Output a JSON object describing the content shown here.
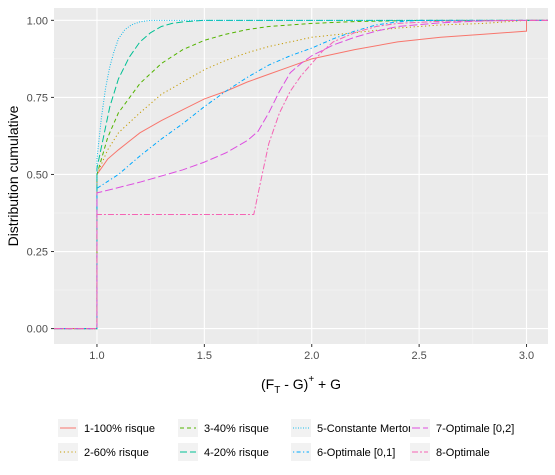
{
  "chart_data": {
    "type": "line",
    "xlabel": "(F_T - G)^+ + G",
    "xlabel_parts": {
      "open": "(F",
      "sub": "T",
      "mid": " - G)",
      "sup": "+",
      "tail": " + G"
    },
    "ylabel": "Distribution cumulative",
    "xlim": [
      0.8,
      3.1
    ],
    "ylim": [
      -0.05,
      1.04
    ],
    "x_ticks": [
      "1.0",
      "1.5",
      "2.0",
      "2.5",
      "3.0"
    ],
    "x_tick_values": [
      1.0,
      1.5,
      2.0,
      2.5,
      3.0
    ],
    "y_ticks": [
      "0.00",
      "0.25",
      "0.50",
      "0.75",
      "1.00"
    ],
    "y_tick_values": [
      0.0,
      0.25,
      0.5,
      0.75,
      1.0
    ],
    "grid": true,
    "legend_position": "bottom",
    "series": [
      {
        "name": "1-100% risque",
        "color": "#F8766D",
        "dash": "solid",
        "points": [
          [
            0.8,
            0
          ],
          [
            1.0,
            0
          ],
          [
            1.0,
            0.5
          ],
          [
            1.05,
            0.55
          ],
          [
            1.1,
            0.58
          ],
          [
            1.2,
            0.635
          ],
          [
            1.3,
            0.675
          ],
          [
            1.4,
            0.71
          ],
          [
            1.5,
            0.745
          ],
          [
            1.6,
            0.77
          ],
          [
            1.7,
            0.8
          ],
          [
            1.8,
            0.825
          ],
          [
            1.9,
            0.85
          ],
          [
            2.0,
            0.875
          ],
          [
            2.2,
            0.905
          ],
          [
            2.4,
            0.93
          ],
          [
            2.6,
            0.945
          ],
          [
            2.8,
            0.955
          ],
          [
            3.0,
            0.965
          ],
          [
            3.0,
            1.0
          ],
          [
            3.1,
            1.0
          ]
        ]
      },
      {
        "name": "2-60% risque",
        "color": "#C49A00",
        "dash": "dotted",
        "points": [
          [
            0.8,
            0
          ],
          [
            1.0,
            0
          ],
          [
            1.0,
            0.5
          ],
          [
            1.05,
            0.58
          ],
          [
            1.1,
            0.635
          ],
          [
            1.2,
            0.7
          ],
          [
            1.3,
            0.76
          ],
          [
            1.4,
            0.8
          ],
          [
            1.5,
            0.84
          ],
          [
            1.6,
            0.87
          ],
          [
            1.7,
            0.895
          ],
          [
            1.8,
            0.915
          ],
          [
            1.9,
            0.93
          ],
          [
            2.0,
            0.945
          ],
          [
            2.2,
            0.96
          ],
          [
            2.4,
            0.975
          ],
          [
            2.6,
            0.985
          ],
          [
            2.8,
            0.99
          ],
          [
            3.0,
            1.0
          ],
          [
            3.1,
            1.0
          ]
        ]
      },
      {
        "name": "3-40% risque",
        "color": "#53B400",
        "dash": "dashed",
        "points": [
          [
            0.8,
            0
          ],
          [
            1.0,
            0
          ],
          [
            1.0,
            0.5
          ],
          [
            1.05,
            0.62
          ],
          [
            1.1,
            0.7
          ],
          [
            1.2,
            0.795
          ],
          [
            1.3,
            0.86
          ],
          [
            1.4,
            0.905
          ],
          [
            1.5,
            0.935
          ],
          [
            1.6,
            0.955
          ],
          [
            1.7,
            0.97
          ],
          [
            1.8,
            0.98
          ],
          [
            2.0,
            0.99
          ],
          [
            2.2,
            0.996
          ],
          [
            2.5,
            1.0
          ],
          [
            3.1,
            1.0
          ]
        ]
      },
      {
        "name": "4-20% risque",
        "color": "#00C094",
        "dash": "longdash",
        "points": [
          [
            0.8,
            0
          ],
          [
            1.0,
            0
          ],
          [
            1.0,
            0.52
          ],
          [
            1.03,
            0.62
          ],
          [
            1.06,
            0.72
          ],
          [
            1.1,
            0.81
          ],
          [
            1.15,
            0.88
          ],
          [
            1.2,
            0.93
          ],
          [
            1.25,
            0.96
          ],
          [
            1.3,
            0.98
          ],
          [
            1.35,
            0.99
          ],
          [
            1.4,
            0.995
          ],
          [
            1.5,
            1.0
          ],
          [
            3.1,
            1.0
          ]
        ]
      },
      {
        "name": "5-Constante Merton",
        "color": "#00B6EB",
        "dash": "fine-dotted",
        "points": [
          [
            0.8,
            0
          ],
          [
            1.0,
            0
          ],
          [
            1.0,
            0.55
          ],
          [
            1.02,
            0.68
          ],
          [
            1.04,
            0.78
          ],
          [
            1.06,
            0.85
          ],
          [
            1.08,
            0.9
          ],
          [
            1.1,
            0.94
          ],
          [
            1.13,
            0.97
          ],
          [
            1.16,
            0.985
          ],
          [
            1.2,
            0.995
          ],
          [
            1.25,
            1.0
          ],
          [
            3.1,
            1.0
          ]
        ]
      },
      {
        "name": "6-Optimale [0,1]",
        "color": "#A58AFF",
        "dash": "dotdash",
        "stroke": "#00A9FF",
        "points": [
          [
            0.8,
            0
          ],
          [
            1.0,
            0
          ],
          [
            1.0,
            0.455
          ],
          [
            1.1,
            0.5
          ],
          [
            1.2,
            0.56
          ],
          [
            1.3,
            0.615
          ],
          [
            1.4,
            0.665
          ],
          [
            1.5,
            0.72
          ],
          [
            1.6,
            0.77
          ],
          [
            1.7,
            0.815
          ],
          [
            1.8,
            0.855
          ],
          [
            1.9,
            0.885
          ],
          [
            2.0,
            0.91
          ],
          [
            2.1,
            0.94
          ],
          [
            2.2,
            0.965
          ],
          [
            2.3,
            0.985
          ],
          [
            2.4,
            0.995
          ],
          [
            2.5,
            1.0
          ],
          [
            3.1,
            1.0
          ]
        ]
      },
      {
        "name": "7-Optimale [0,2]",
        "color": "#FB61D7",
        "dash": "longdash2",
        "stroke": "#DD4FE0",
        "points": [
          [
            0.8,
            0
          ],
          [
            1.0,
            0
          ],
          [
            1.0,
            0.44
          ],
          [
            1.2,
            0.475
          ],
          [
            1.4,
            0.515
          ],
          [
            1.5,
            0.54
          ],
          [
            1.6,
            0.57
          ],
          [
            1.7,
            0.61
          ],
          [
            1.75,
            0.64
          ],
          [
            1.8,
            0.7
          ],
          [
            1.85,
            0.77
          ],
          [
            1.9,
            0.83
          ],
          [
            1.95,
            0.86
          ],
          [
            2.0,
            0.885
          ],
          [
            2.1,
            0.92
          ],
          [
            2.2,
            0.945
          ],
          [
            2.3,
            0.965
          ],
          [
            2.4,
            0.98
          ],
          [
            2.6,
            0.992
          ],
          [
            2.8,
            0.998
          ],
          [
            3.0,
            1.0
          ],
          [
            3.1,
            1.0
          ]
        ]
      },
      {
        "name": "8-Optimale",
        "color": "#FF61C3",
        "dash": "twodash",
        "stroke": "#F564B4",
        "points": [
          [
            0.8,
            0
          ],
          [
            1.0,
            0
          ],
          [
            1.0,
            0.37
          ],
          [
            1.2,
            0.37
          ],
          [
            1.5,
            0.37
          ],
          [
            1.73,
            0.37
          ],
          [
            1.76,
            0.47
          ],
          [
            1.8,
            0.6
          ],
          [
            1.85,
            0.7
          ],
          [
            1.9,
            0.77
          ],
          [
            1.95,
            0.82
          ],
          [
            2.0,
            0.86
          ],
          [
            2.05,
            0.9
          ],
          [
            2.1,
            0.93
          ],
          [
            2.2,
            0.96
          ],
          [
            2.3,
            0.98
          ],
          [
            2.4,
            0.99
          ],
          [
            2.6,
            0.997
          ],
          [
            3.0,
            1.0
          ],
          [
            3.1,
            1.0
          ]
        ]
      }
    ]
  }
}
